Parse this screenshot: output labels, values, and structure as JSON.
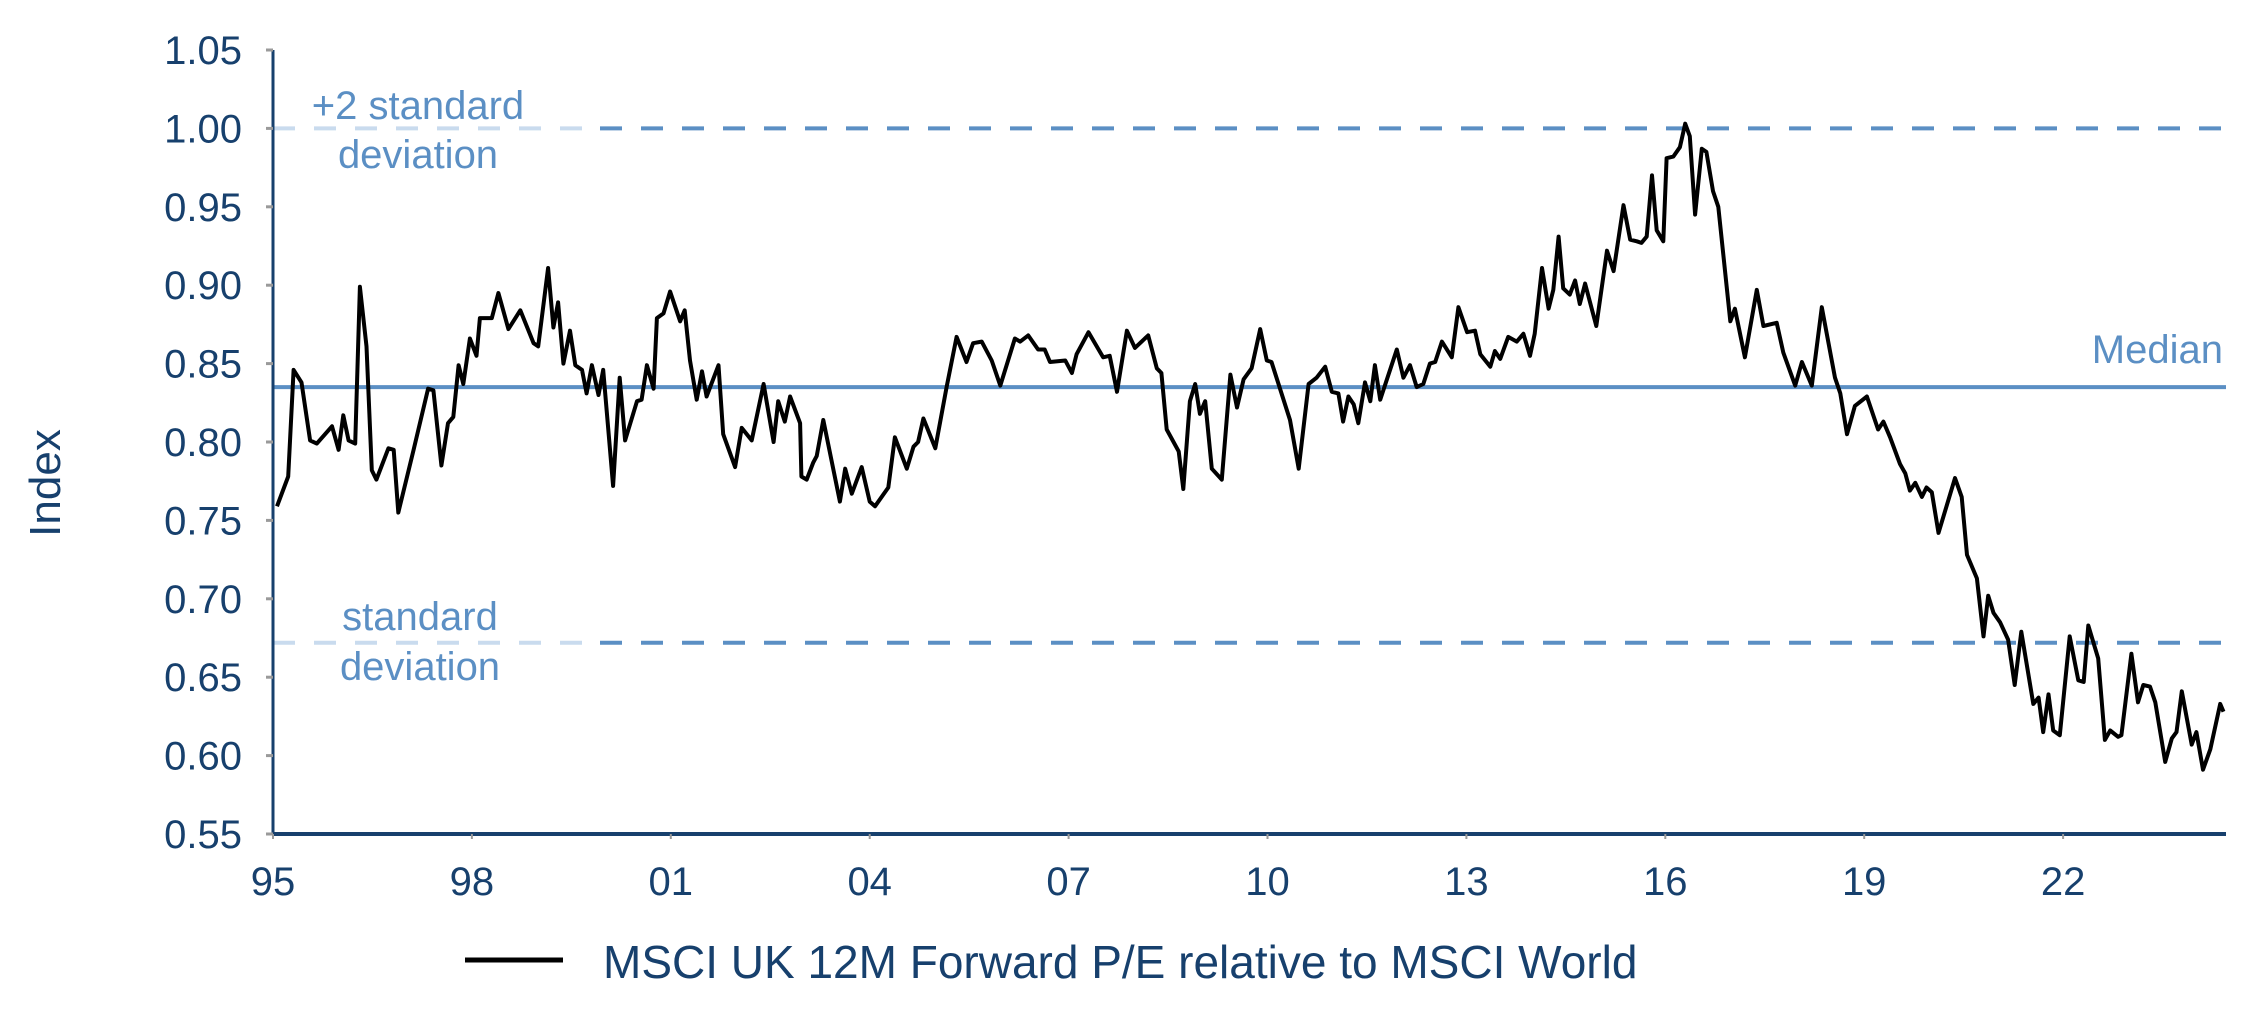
{
  "chart_data": {
    "type": "line",
    "title": "",
    "xlabel": "",
    "ylabel": "Index",
    "xlim": [
      1995,
      2024.6
    ],
    "ylim": [
      0.55,
      1.05
    ],
    "grid": false,
    "legend_placement": "bottom-center",
    "y_ticks": [
      "0.55",
      "0.60",
      "0.65",
      "0.70",
      "0.75",
      "0.80",
      "0.85",
      "0.90",
      "0.95",
      "1.00",
      "1.05"
    ],
    "x_ticks": [
      {
        "year": 1995,
        "label": "95"
      },
      {
        "year": 1998,
        "label": "98"
      },
      {
        "year": 2001,
        "label": "01"
      },
      {
        "year": 2004,
        "label": "04"
      },
      {
        "year": 2007,
        "label": "07"
      },
      {
        "year": 2010,
        "label": "10"
      },
      {
        "year": 2013,
        "label": "13"
      },
      {
        "year": 2016,
        "label": "16"
      },
      {
        "year": 2019,
        "label": "19"
      },
      {
        "year": 2022,
        "label": "22"
      }
    ],
    "reference_lines": {
      "upper": {
        "value": 1.0,
        "label_line1": "+2 standard",
        "label_line2": "deviation"
      },
      "median": {
        "value": 0.835,
        "label": "Median"
      },
      "lower": {
        "value": 0.672,
        "label_line1": "standard",
        "label_line2": "deviation"
      }
    },
    "colors": {
      "series": "#000000",
      "reference": "#5b8fc4",
      "reference_faint": "#c9dbee",
      "axis": "#17406d",
      "text": "#17406d"
    },
    "series": [
      {
        "name": "MSCI UK 12M Forward P/E relative to MSCI World",
        "points": [
          [
            1995.06,
            0.759
          ],
          [
            1995.23,
            0.778
          ],
          [
            1995.31,
            0.846
          ],
          [
            1995.43,
            0.838
          ],
          [
            1995.56,
            0.801
          ],
          [
            1995.66,
            0.799
          ],
          [
            1995.89,
            0.81
          ],
          [
            1995.99,
            0.795
          ],
          [
            1996.06,
            0.817
          ],
          [
            1996.14,
            0.801
          ],
          [
            1996.24,
            0.799
          ],
          [
            1996.31,
            0.899
          ],
          [
            1996.41,
            0.861
          ],
          [
            1996.49,
            0.782
          ],
          [
            1996.56,
            0.776
          ],
          [
            1996.74,
            0.796
          ],
          [
            1996.82,
            0.795
          ],
          [
            1996.89,
            0.755
          ],
          [
            1997.12,
            0.795
          ],
          [
            1997.34,
            0.834
          ],
          [
            1997.42,
            0.833
          ],
          [
            1997.54,
            0.785
          ],
          [
            1997.64,
            0.812
          ],
          [
            1997.72,
            0.816
          ],
          [
            1997.8,
            0.849
          ],
          [
            1997.87,
            0.837
          ],
          [
            1997.97,
            0.866
          ],
          [
            1998.07,
            0.855
          ],
          [
            1998.12,
            0.879
          ],
          [
            1998.3,
            0.879
          ],
          [
            1998.4,
            0.895
          ],
          [
            1998.55,
            0.872
          ],
          [
            1998.73,
            0.884
          ],
          [
            1998.93,
            0.863
          ],
          [
            1999.0,
            0.861
          ],
          [
            1999.15,
            0.911
          ],
          [
            1999.23,
            0.873
          ],
          [
            1999.3,
            0.889
          ],
          [
            1999.38,
            0.85
          ],
          [
            1999.48,
            0.871
          ],
          [
            1999.56,
            0.849
          ],
          [
            1999.66,
            0.846
          ],
          [
            1999.73,
            0.831
          ],
          [
            1999.81,
            0.849
          ],
          [
            1999.91,
            0.83
          ],
          [
            1999.98,
            0.846
          ],
          [
            2000.13,
            0.772
          ],
          [
            2000.23,
            0.841
          ],
          [
            2000.31,
            0.801
          ],
          [
            2000.49,
            0.826
          ],
          [
            2000.56,
            0.827
          ],
          [
            2000.64,
            0.849
          ],
          [
            2000.74,
            0.834
          ],
          [
            2000.79,
            0.879
          ],
          [
            2000.89,
            0.882
          ],
          [
            2000.99,
            0.896
          ],
          [
            2001.14,
            0.877
          ],
          [
            2001.21,
            0.884
          ],
          [
            2001.29,
            0.852
          ],
          [
            2001.39,
            0.827
          ],
          [
            2001.47,
            0.845
          ],
          [
            2001.54,
            0.829
          ],
          [
            2001.72,
            0.849
          ],
          [
            2001.79,
            0.805
          ],
          [
            2001.97,
            0.784
          ],
          [
            2002.07,
            0.809
          ],
          [
            2002.22,
            0.801
          ],
          [
            2002.4,
            0.837
          ],
          [
            2002.55,
            0.8
          ],
          [
            2002.62,
            0.826
          ],
          [
            2002.72,
            0.813
          ],
          [
            2002.8,
            0.829
          ],
          [
            2002.95,
            0.812
          ],
          [
            2002.97,
            0.778
          ],
          [
            2003.05,
            0.776
          ],
          [
            2003.15,
            0.787
          ],
          [
            2003.2,
            0.791
          ],
          [
            2003.3,
            0.814
          ],
          [
            2003.55,
            0.762
          ],
          [
            2003.63,
            0.783
          ],
          [
            2003.73,
            0.767
          ],
          [
            2003.88,
            0.784
          ],
          [
            2004.0,
            0.762
          ],
          [
            2004.08,
            0.759
          ],
          [
            2004.28,
            0.771
          ],
          [
            2004.38,
            0.803
          ],
          [
            2004.56,
            0.783
          ],
          [
            2004.66,
            0.797
          ],
          [
            2004.73,
            0.8
          ],
          [
            2004.81,
            0.815
          ],
          [
            2004.99,
            0.796
          ],
          [
            2005.16,
            0.835
          ],
          [
            2005.31,
            0.867
          ],
          [
            2005.46,
            0.851
          ],
          [
            2005.56,
            0.863
          ],
          [
            2005.69,
            0.864
          ],
          [
            2005.84,
            0.852
          ],
          [
            2005.97,
            0.836
          ],
          [
            2006.19,
            0.866
          ],
          [
            2006.27,
            0.864
          ],
          [
            2006.39,
            0.868
          ],
          [
            2006.54,
            0.859
          ],
          [
            2006.64,
            0.859
          ],
          [
            2006.72,
            0.851
          ],
          [
            2006.95,
            0.852
          ],
          [
            2007.05,
            0.844
          ],
          [
            2007.12,
            0.856
          ],
          [
            2007.3,
            0.87
          ],
          [
            2007.52,
            0.854
          ],
          [
            2007.62,
            0.855
          ],
          [
            2007.73,
            0.832
          ],
          [
            2007.88,
            0.871
          ],
          [
            2008.0,
            0.86
          ],
          [
            2008.2,
            0.868
          ],
          [
            2008.33,
            0.847
          ],
          [
            2008.4,
            0.844
          ],
          [
            2008.48,
            0.808
          ],
          [
            2008.66,
            0.794
          ],
          [
            2008.73,
            0.77
          ],
          [
            2008.83,
            0.826
          ],
          [
            2008.91,
            0.837
          ],
          [
            2008.98,
            0.818
          ],
          [
            2009.06,
            0.826
          ],
          [
            2009.16,
            0.783
          ],
          [
            2009.31,
            0.776
          ],
          [
            2009.44,
            0.843
          ],
          [
            2009.54,
            0.822
          ],
          [
            2009.64,
            0.84
          ],
          [
            2009.76,
            0.847
          ],
          [
            2009.89,
            0.872
          ],
          [
            2009.99,
            0.852
          ],
          [
            2010.06,
            0.851
          ],
          [
            2010.34,
            0.814
          ],
          [
            2010.47,
            0.783
          ],
          [
            2010.62,
            0.837
          ],
          [
            2010.74,
            0.841
          ],
          [
            2010.87,
            0.848
          ],
          [
            2010.97,
            0.832
          ],
          [
            2011.07,
            0.831
          ],
          [
            2011.14,
            0.813
          ],
          [
            2011.22,
            0.829
          ],
          [
            2011.3,
            0.824
          ],
          [
            2011.37,
            0.812
          ],
          [
            2011.47,
            0.838
          ],
          [
            2011.55,
            0.826
          ],
          [
            2011.62,
            0.849
          ],
          [
            2011.7,
            0.827
          ],
          [
            2011.95,
            0.859
          ],
          [
            2012.05,
            0.841
          ],
          [
            2012.15,
            0.849
          ],
          [
            2012.25,
            0.835
          ],
          [
            2012.35,
            0.837
          ],
          [
            2012.45,
            0.85
          ],
          [
            2012.53,
            0.851
          ],
          [
            2012.63,
            0.864
          ],
          [
            2012.78,
            0.854
          ],
          [
            2012.88,
            0.886
          ],
          [
            2013.01,
            0.87
          ],
          [
            2013.13,
            0.871
          ],
          [
            2013.21,
            0.856
          ],
          [
            2013.36,
            0.848
          ],
          [
            2013.43,
            0.858
          ],
          [
            2013.51,
            0.853
          ],
          [
            2013.63,
            0.867
          ],
          [
            2013.76,
            0.864
          ],
          [
            2013.86,
            0.869
          ],
          [
            2013.96,
            0.855
          ],
          [
            2014.03,
            0.869
          ],
          [
            2014.14,
            0.911
          ],
          [
            2014.24,
            0.885
          ],
          [
            2014.31,
            0.897
          ],
          [
            2014.39,
            0.931
          ],
          [
            2014.46,
            0.898
          ],
          [
            2014.56,
            0.894
          ],
          [
            2014.64,
            0.903
          ],
          [
            2014.71,
            0.888
          ],
          [
            2014.79,
            0.901
          ],
          [
            2014.96,
            0.874
          ],
          [
            2015.12,
            0.922
          ],
          [
            2015.22,
            0.909
          ],
          [
            2015.37,
            0.951
          ],
          [
            2015.47,
            0.929
          ],
          [
            2015.57,
            0.928
          ],
          [
            2015.64,
            0.927
          ],
          [
            2015.72,
            0.931
          ],
          [
            2015.8,
            0.97
          ],
          [
            2015.87,
            0.935
          ],
          [
            2015.97,
            0.928
          ],
          [
            2016.02,
            0.981
          ],
          [
            2016.12,
            0.982
          ],
          [
            2016.22,
            0.988
          ],
          [
            2016.3,
            1.003
          ],
          [
            2016.37,
            0.995
          ],
          [
            2016.45,
            0.945
          ],
          [
            2016.55,
            0.987
          ],
          [
            2016.62,
            0.985
          ],
          [
            2016.72,
            0.96
          ],
          [
            2016.8,
            0.95
          ],
          [
            2016.98,
            0.877
          ],
          [
            2017.05,
            0.885
          ],
          [
            2017.2,
            0.854
          ],
          [
            2017.38,
            0.897
          ],
          [
            2017.48,
            0.874
          ],
          [
            2017.68,
            0.876
          ],
          [
            2017.78,
            0.857
          ],
          [
            2017.96,
            0.836
          ],
          [
            2018.06,
            0.851
          ],
          [
            2018.21,
            0.836
          ],
          [
            2018.36,
            0.886
          ],
          [
            2018.56,
            0.841
          ],
          [
            2018.64,
            0.831
          ],
          [
            2018.74,
            0.805
          ],
          [
            2018.86,
            0.823
          ],
          [
            2019.04,
            0.829
          ],
          [
            2019.21,
            0.808
          ],
          [
            2019.29,
            0.813
          ],
          [
            2019.39,
            0.803
          ],
          [
            2019.54,
            0.786
          ],
          [
            2019.62,
            0.78
          ],
          [
            2019.69,
            0.769
          ],
          [
            2019.77,
            0.774
          ],
          [
            2019.87,
            0.765
          ],
          [
            2019.94,
            0.771
          ],
          [
            2020.02,
            0.768
          ],
          [
            2020.12,
            0.742
          ],
          [
            2020.37,
            0.777
          ],
          [
            2020.47,
            0.765
          ],
          [
            2020.55,
            0.728
          ],
          [
            2020.7,
            0.713
          ],
          [
            2020.8,
            0.676
          ],
          [
            2020.87,
            0.702
          ],
          [
            2020.95,
            0.691
          ],
          [
            2021.05,
            0.685
          ],
          [
            2021.17,
            0.674
          ],
          [
            2021.27,
            0.645
          ],
          [
            2021.37,
            0.679
          ],
          [
            2021.55,
            0.633
          ],
          [
            2021.63,
            0.637
          ],
          [
            2021.7,
            0.615
          ],
          [
            2021.78,
            0.639
          ],
          [
            2021.85,
            0.616
          ],
          [
            2021.95,
            0.613
          ],
          [
            2022.1,
            0.676
          ],
          [
            2022.23,
            0.648
          ],
          [
            2022.31,
            0.647
          ],
          [
            2022.38,
            0.683
          ],
          [
            2022.53,
            0.662
          ],
          [
            2022.63,
            0.61
          ],
          [
            2022.71,
            0.616
          ],
          [
            2022.83,
            0.612
          ],
          [
            2022.88,
            0.613
          ],
          [
            2023.03,
            0.665
          ],
          [
            2023.13,
            0.634
          ],
          [
            2023.21,
            0.645
          ],
          [
            2023.31,
            0.644
          ],
          [
            2023.39,
            0.634
          ],
          [
            2023.54,
            0.596
          ],
          [
            2023.64,
            0.611
          ],
          [
            2023.71,
            0.615
          ],
          [
            2023.79,
            0.641
          ],
          [
            2023.94,
            0.607
          ],
          [
            2024.01,
            0.615
          ],
          [
            2024.11,
            0.591
          ],
          [
            2024.22,
            0.604
          ],
          [
            2024.37,
            0.633
          ],
          [
            2024.42,
            0.628
          ]
        ]
      }
    ]
  }
}
